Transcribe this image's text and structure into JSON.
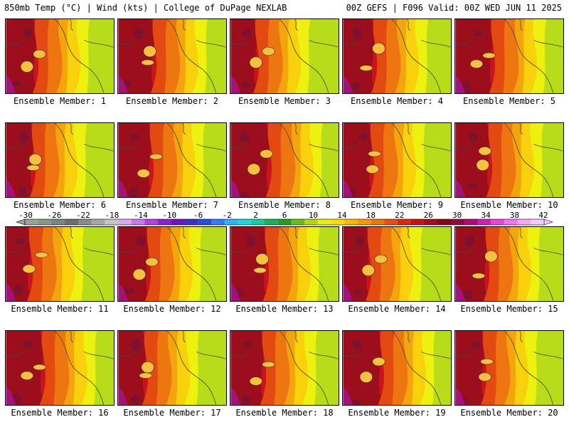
{
  "header": {
    "left": "850mb Temp (°C) | Wind (kts) | College of DuPage NEXLAB",
    "right": "00Z GEFS | F096 Valid: 00Z WED JUN 11 2025"
  },
  "member_prefix": "Ensemble Member:",
  "members": [
    {
      "label": "Ensemble Member: 1",
      "number": 1
    },
    {
      "label": "Ensemble Member: 2",
      "number": 2
    },
    {
      "label": "Ensemble Member: 3",
      "number": 3
    },
    {
      "label": "Ensemble Member: 4",
      "number": 4
    },
    {
      "label": "Ensemble Member: 5",
      "number": 5
    },
    {
      "label": "Ensemble Member: 6",
      "number": 6
    },
    {
      "label": "Ensemble Member: 7",
      "number": 7
    },
    {
      "label": "Ensemble Member: 8",
      "number": 8
    },
    {
      "label": "Ensemble Member: 9",
      "number": 9
    },
    {
      "label": "Ensemble Member: 10",
      "number": 10
    },
    {
      "label": "Ensemble Member: 11",
      "number": 11
    },
    {
      "label": "Ensemble Member: 12",
      "number": 12
    },
    {
      "label": "Ensemble Member: 13",
      "number": 13
    },
    {
      "label": "Ensemble Member: 14",
      "number": 14
    },
    {
      "label": "Ensemble Member: 15",
      "number": 15
    },
    {
      "label": "Ensemble Member: 16",
      "number": 16
    },
    {
      "label": "Ensemble Member: 17",
      "number": 17
    },
    {
      "label": "Ensemble Member: 18",
      "number": 18
    },
    {
      "label": "Ensemble Member: 19",
      "number": 19
    },
    {
      "label": "Ensemble Member: 20",
      "number": 20
    }
  ],
  "colorbar": {
    "tick_labels": [
      "-30",
      "-26",
      "-22",
      "-18",
      "-14",
      "-10",
      "-6",
      "-2",
      "2",
      "6",
      "10",
      "14",
      "18",
      "22",
      "26",
      "30",
      "34",
      "38",
      "42"
    ],
    "colors": [
      "#9aa29a",
      "#8e948e",
      "#7e847e",
      "#6c706c",
      "#8a8a8a",
      "#a8a8a8",
      "#c6c6c6",
      "#ddaaee",
      "#cc77ee",
      "#b044dd",
      "#8a22cc",
      "#6a16c0",
      "#4030c0",
      "#2a4ee0",
      "#2f7fef",
      "#34b0f4",
      "#2cd2dc",
      "#20c8a0",
      "#20b060",
      "#2c9a28",
      "#6cbc1c",
      "#b4d812",
      "#e8f00a",
      "#f8dc0a",
      "#f8b80a",
      "#f49a0c",
      "#ee760e",
      "#e84e10",
      "#dc2a12",
      "#c4121a",
      "#a00e1c",
      "#800a18",
      "#900a40",
      "#b00a78",
      "#d020b0",
      "#e848d8",
      "#f078ec",
      "#f8a8f4",
      "#f4ccf8"
    ]
  }
}
